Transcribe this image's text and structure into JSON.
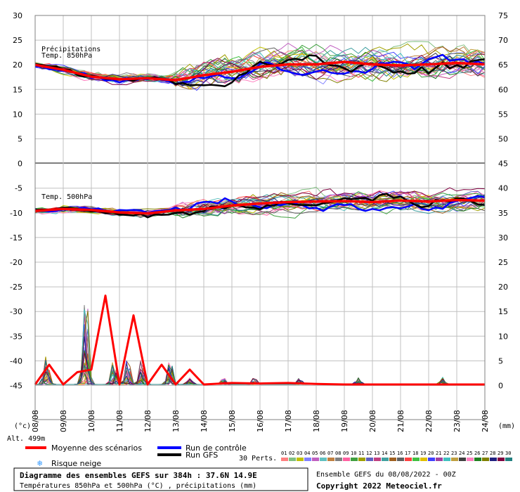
{
  "chart_data": {
    "type": "line",
    "title": "Diagramme des ensembles GEFS sur 384h : 37.6N 14.9E",
    "subtitle": "Températures 850hPa et 500hPa (°C) , précipitations (mm)",
    "run_info": "Ensemble GEFS du 08/08/2022 - 00Z",
    "copyright": "Copyright 2022 Meteociel.fr",
    "altitude": "Alt. 499m",
    "x_unit_left": "(°c)",
    "x_unit_right": "(mm)",
    "x_ticks": [
      "08/08",
      "09/08",
      "10/08",
      "11/08",
      "12/08",
      "13/08",
      "14/08",
      "15/08",
      "16/08",
      "17/08",
      "18/08",
      "19/08",
      "20/08",
      "21/08",
      "22/08",
      "23/08",
      "24/08"
    ],
    "y_left_ticks": [
      "30",
      "25",
      "20",
      "15",
      "10",
      "5",
      "0",
      "-5",
      "-10",
      "-15",
      "-20",
      "-25",
      "-30",
      "-35",
      "-40",
      "-45"
    ],
    "y_right_ticks": [
      "75",
      "70",
      "65",
      "60",
      "55",
      "50",
      "45",
      "40",
      "35",
      "30",
      "25",
      "20",
      "15",
      "10",
      "5",
      "0"
    ],
    "panel_labels": {
      "precip": "Précipitations",
      "t850": "Temp. 850hPa",
      "t500": "Temp. 500hPa"
    },
    "legend": {
      "mean": "Moyenne des scénarios",
      "control": "Run de contrôle",
      "gfs": "Run GFS",
      "snow": "Risque neige",
      "perts_label": "30 Perts.",
      "pert_numbers": [
        "01",
        "02",
        "03",
        "04",
        "05",
        "06",
        "07",
        "08",
        "09",
        "10",
        "11",
        "12",
        "13",
        "14",
        "15",
        "16",
        "17",
        "18",
        "19",
        "20",
        "21",
        "22",
        "23",
        "24",
        "25",
        "26",
        "27",
        "28",
        "29",
        "30"
      ]
    },
    "colors": {
      "mean": "#ff0000",
      "control": "#0000ff",
      "gfs": "#000000",
      "grid": "#c0c0c0",
      "snow": "#3399ff",
      "perts": [
        "#ff8080",
        "#80c080",
        "#c0c000",
        "#8080ff",
        "#c060c0",
        "#60c0c0",
        "#c08040",
        "#808080",
        "#ff60a0",
        "#40a040",
        "#a0a000",
        "#6060c0",
        "#c04080",
        "#40a0a0",
        "#a06020",
        "#606060",
        "#ff4040",
        "#40c040",
        "#e0c000",
        "#4040ff",
        "#a040a0",
        "#40c0c0",
        "#c0a040",
        "#404040",
        "#ff80c0",
        "#208020",
        "#808000",
        "#202080",
        "#800040",
        "#208080"
      ]
    },
    "series": [
      {
        "name": "Temp. 850hPa - Moyenne des scénarios",
        "x": [
          "08/08",
          "09/08",
          "10/08",
          "11/08",
          "12/08",
          "13/08",
          "14/08",
          "15/08",
          "16/08",
          "17/08",
          "18/08",
          "19/08",
          "20/08",
          "21/08",
          "22/08",
          "23/08",
          "24/08"
        ],
        "values": [
          19.9,
          18.9,
          17.5,
          17.0,
          17.2,
          16.8,
          17.8,
          18.5,
          19.5,
          20.0,
          20.0,
          20.5,
          20.0,
          19.8,
          20.0,
          20.3,
          20.0
        ]
      },
      {
        "name": "Temp. 500hPa - Moyenne des scénarios",
        "x": [
          "08/08",
          "09/08",
          "10/08",
          "11/08",
          "12/08",
          "13/08",
          "14/08",
          "15/08",
          "16/08",
          "17/08",
          "18/08",
          "19/08",
          "20/08",
          "21/08",
          "22/08",
          "23/08",
          "24/08"
        ],
        "values": [
          -9.7,
          -9.3,
          -9.5,
          -10.0,
          -10.2,
          -9.6,
          -9.3,
          -8.6,
          -8.2,
          -7.9,
          -7.8,
          -7.7,
          -7.9,
          -7.6,
          -7.8,
          -7.5,
          -7.6
        ]
      },
      {
        "name": "Précipitations - Moyenne des scénarios",
        "x": [
          "08/08",
          "08/08 12Z",
          "09/08",
          "09/08 12Z",
          "10/08",
          "10/08 12Z",
          "11/08",
          "11/08 12Z",
          "12/08",
          "12/08 12Z",
          "13/08",
          "13/08 12Z",
          "14/08",
          "15/08",
          "16/08",
          "17/08",
          "18/08",
          "19/08",
          "20/08",
          "21/08",
          "22/08",
          "23/08",
          "24/08"
        ],
        "values": [
          0,
          4,
          0,
          2.5,
          3,
          18,
          0,
          14,
          0,
          4,
          0,
          3,
          0,
          0.3,
          0.2,
          0.3,
          0.1,
          0,
          0,
          0,
          0,
          0,
          0
        ]
      }
    ]
  }
}
